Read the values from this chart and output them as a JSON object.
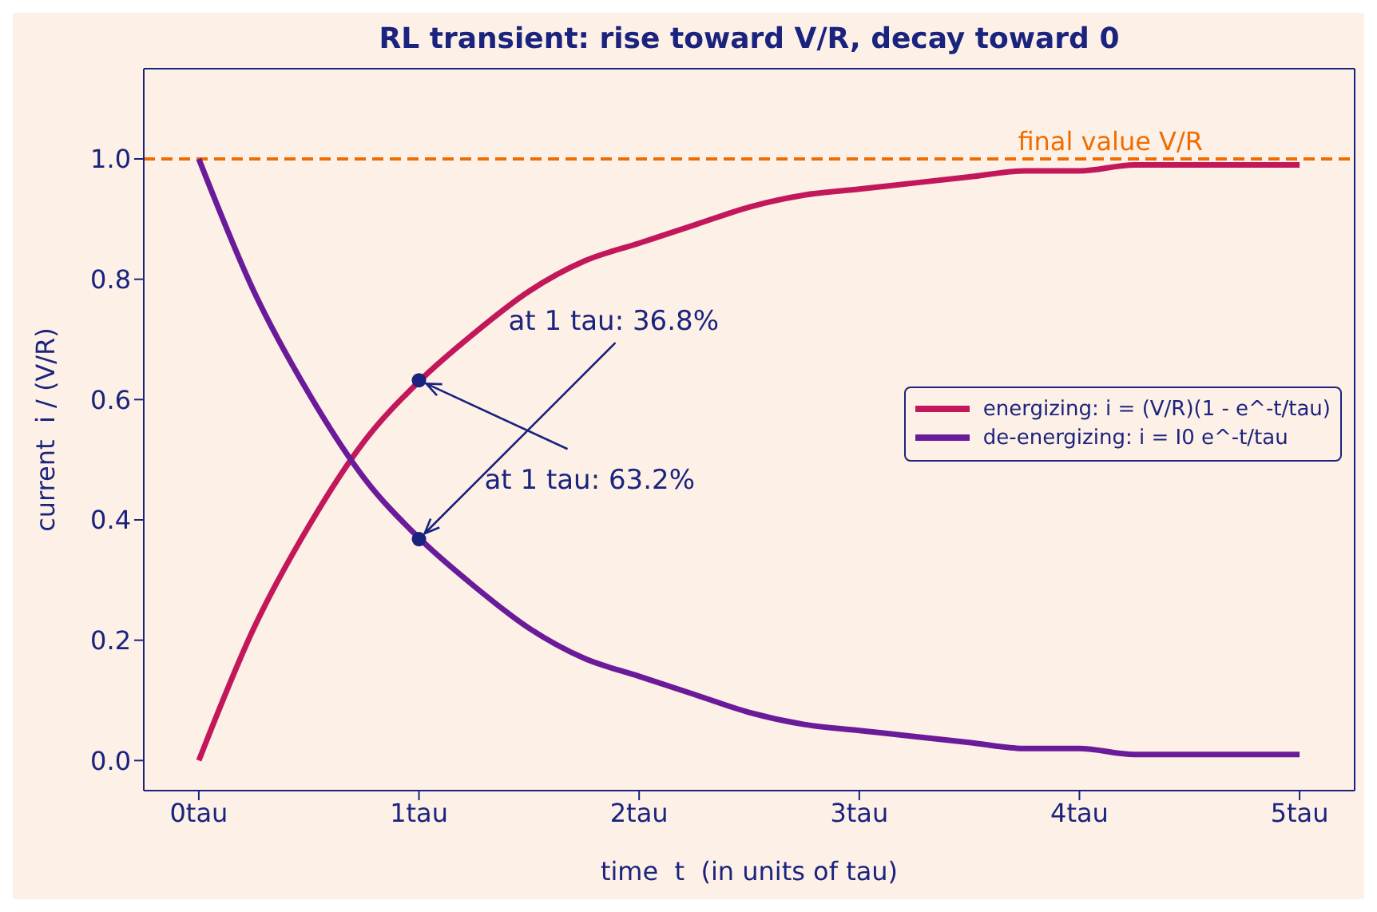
{
  "chart_data": {
    "type": "line",
    "title": "RL transient: rise toward V/R, decay toward 0",
    "xlabel": "time  t  (in units of tau)",
    "ylabel": "current  i / (V/R)",
    "x": [
      0,
      0.25,
      0.5,
      0.75,
      1,
      1.25,
      1.5,
      1.75,
      2,
      2.25,
      2.5,
      2.75,
      3,
      3.25,
      3.5,
      3.75,
      4,
      4.25,
      4.5,
      4.75,
      5
    ],
    "series": [
      {
        "name": "energizing: i = (V/R)(1 - e^-t/tau)",
        "color": "#c2185b",
        "values": [
          0,
          0.22,
          0.39,
          0.53,
          0.63,
          0.71,
          0.78,
          0.83,
          0.86,
          0.89,
          0.92,
          0.94,
          0.95,
          0.96,
          0.97,
          0.98,
          0.98,
          0.99,
          0.99,
          0.99,
          0.99
        ]
      },
      {
        "name": "de-energizing: i = I0 e^-t/tau",
        "color": "#6a1b9a",
        "values": [
          1,
          0.78,
          0.61,
          0.47,
          0.37,
          0.29,
          0.22,
          0.17,
          0.14,
          0.11,
          0.08,
          0.06,
          0.05,
          0.04,
          0.03,
          0.02,
          0.02,
          0.01,
          0.01,
          0.01,
          0.01
        ]
      },
      {
        "type": "scatter",
        "marker": "circle",
        "color": "#1a237e",
        "x": [
          1,
          1
        ],
        "values": [
          0.632,
          0.368
        ]
      }
    ],
    "annotations": [
      {
        "text": "at 1 tau: 36.8%",
        "x": 1,
        "y": 0.368
      },
      {
        "text": "at 1 tau: 63.2%",
        "x": 1,
        "y": 0.632
      }
    ],
    "ref_lines": [
      {
        "axis": "y",
        "value": 1,
        "label": "final value V/R",
        "color": "#ef6c00",
        "line_style": "dashed"
      }
    ],
    "xlim": [
      -0.25,
      5.25
    ],
    "ylim": [
      -0.05,
      1.15
    ],
    "xticks": [
      {
        "value": 0,
        "label": "0tau"
      },
      {
        "value": 1,
        "label": "1tau"
      },
      {
        "value": 2,
        "label": "2tau"
      },
      {
        "value": 3,
        "label": "3tau"
      },
      {
        "value": 4,
        "label": "4tau"
      },
      {
        "value": 5,
        "label": "5tau"
      }
    ],
    "yticks": [
      {
        "value": 0,
        "label": "0.0"
      },
      {
        "value": 0.2,
        "label": "0.2"
      },
      {
        "value": 0.4,
        "label": "0.4"
      },
      {
        "value": 0.6,
        "label": "0.6"
      },
      {
        "value": 0.8,
        "label": "0.8"
      },
      {
        "value": 1,
        "label": "1.0"
      }
    ],
    "grid": false,
    "legend": "right",
    "marker": "none",
    "line_style": "solid"
  }
}
